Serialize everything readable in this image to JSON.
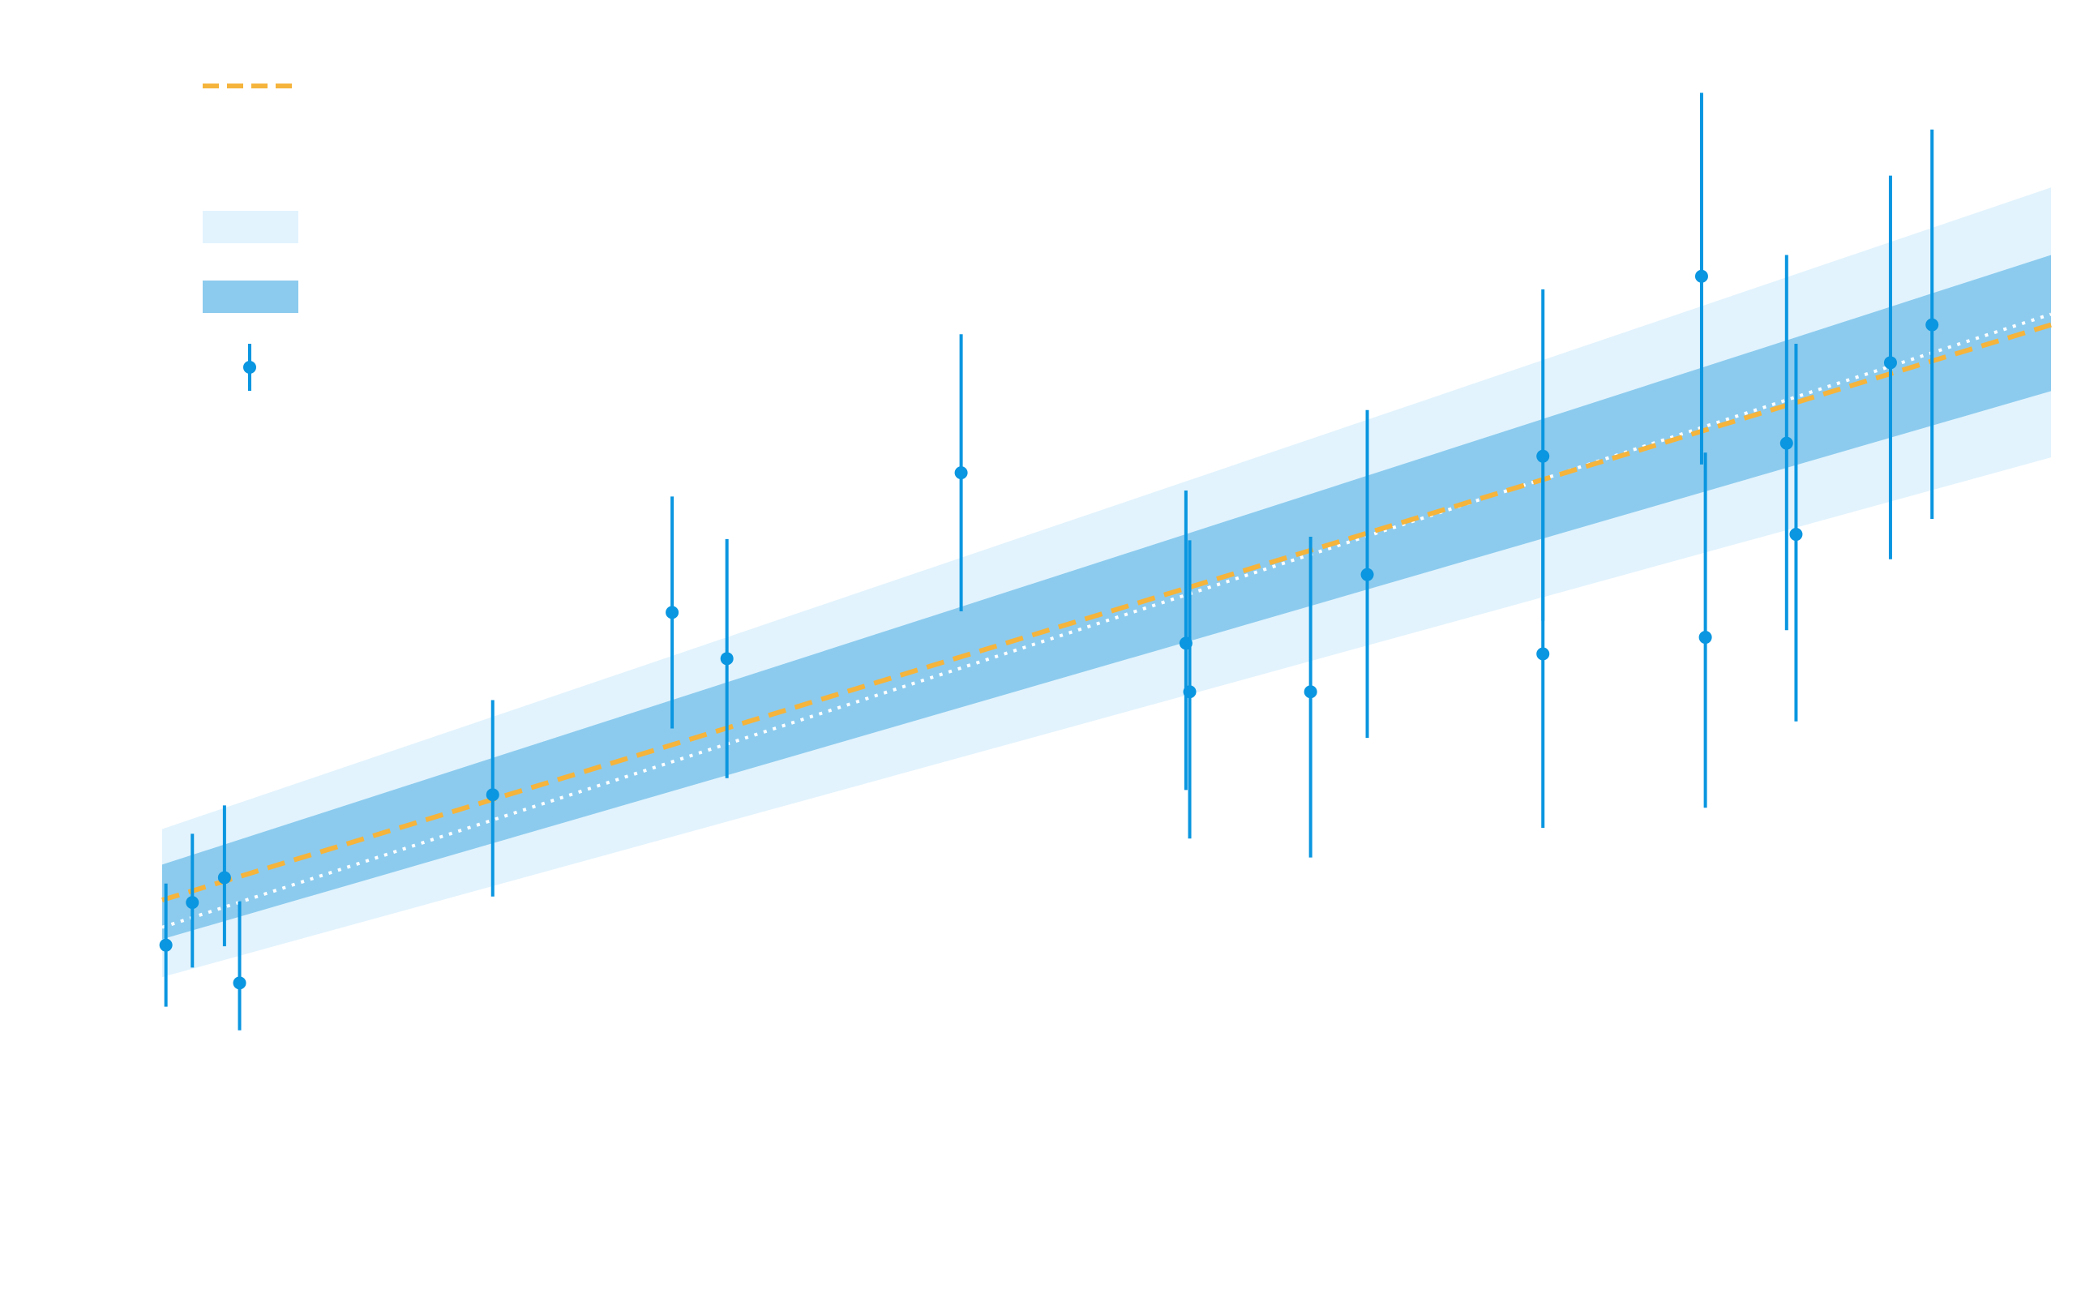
{
  "chart_data": {
    "type": "scatter",
    "title": "",
    "xlabel": "",
    "ylabel": "",
    "xlim": [
      0,
      1
    ],
    "ylim": [
      0,
      1
    ],
    "grid": false,
    "legend": {
      "placement": "top-left",
      "entries": [
        {
          "kind": "dashed-line",
          "label": ""
        },
        {
          "kind": "band-light",
          "label": ""
        },
        {
          "kind": "band-dark",
          "label": ""
        },
        {
          "kind": "errorbar-point",
          "label": ""
        }
      ]
    },
    "colors": {
      "point": "#0a96e0",
      "fit_line": "#f5b43c",
      "true_line": "#ffffff",
      "band_outer": "#e2f3fd",
      "band_inner": "#8ccbee"
    },
    "fit_line": {
      "x": [
        0.0,
        1.0
      ],
      "y": [
        0.267,
        0.753
      ]
    },
    "true_line": {
      "x": [
        0.0,
        1.0
      ],
      "y": [
        0.244,
        0.762
      ]
    },
    "band_inner": {
      "x": [
        0.0,
        1.0
      ],
      "lower": [
        0.234,
        0.697
      ],
      "upper": [
        0.297,
        0.812
      ]
    },
    "band_outer": {
      "x": [
        0.0,
        1.0
      ],
      "lower": [
        0.202,
        0.641
      ],
      "upper": [
        0.327,
        0.869
      ]
    },
    "points": [
      {
        "x": 0.002,
        "y": 0.229,
        "lo": 0.177,
        "hi": 0.281
      },
      {
        "x": 0.016,
        "y": 0.265,
        "lo": 0.21,
        "hi": 0.323
      },
      {
        "x": 0.033,
        "y": 0.286,
        "lo": 0.228,
        "hi": 0.347
      },
      {
        "x": 0.041,
        "y": 0.197,
        "lo": 0.157,
        "hi": 0.266
      },
      {
        "x": 0.175,
        "y": 0.356,
        "lo": 0.27,
        "hi": 0.436
      },
      {
        "x": 0.27,
        "y": 0.51,
        "lo": 0.412,
        "hi": 0.608
      },
      {
        "x": 0.299,
        "y": 0.471,
        "lo": 0.37,
        "hi": 0.572
      },
      {
        "x": 0.423,
        "y": 0.628,
        "lo": 0.511,
        "hi": 0.745
      },
      {
        "x": 0.542,
        "y": 0.484,
        "lo": 0.36,
        "hi": 0.613
      },
      {
        "x": 0.544,
        "y": 0.443,
        "lo": 0.319,
        "hi": 0.571
      },
      {
        "x": 0.608,
        "y": 0.443,
        "lo": 0.303,
        "hi": 0.574
      },
      {
        "x": 0.638,
        "y": 0.542,
        "lo": 0.404,
        "hi": 0.681
      },
      {
        "x": 0.731,
        "y": 0.642,
        "lo": 0.503,
        "hi": 0.783
      },
      {
        "x": 0.731,
        "y": 0.475,
        "lo": 0.328,
        "hi": 0.623
      },
      {
        "x": 0.815,
        "y": 0.794,
        "lo": 0.635,
        "hi": 0.949
      },
      {
        "x": 0.817,
        "y": 0.489,
        "lo": 0.345,
        "hi": 0.645
      },
      {
        "x": 0.86,
        "y": 0.653,
        "lo": 0.495,
        "hi": 0.812
      },
      {
        "x": 0.865,
        "y": 0.576,
        "lo": 0.418,
        "hi": 0.737
      },
      {
        "x": 0.915,
        "y": 0.721,
        "lo": 0.555,
        "hi": 0.879
      },
      {
        "x": 0.937,
        "y": 0.753,
        "lo": 0.589,
        "hi": 0.918
      }
    ]
  }
}
